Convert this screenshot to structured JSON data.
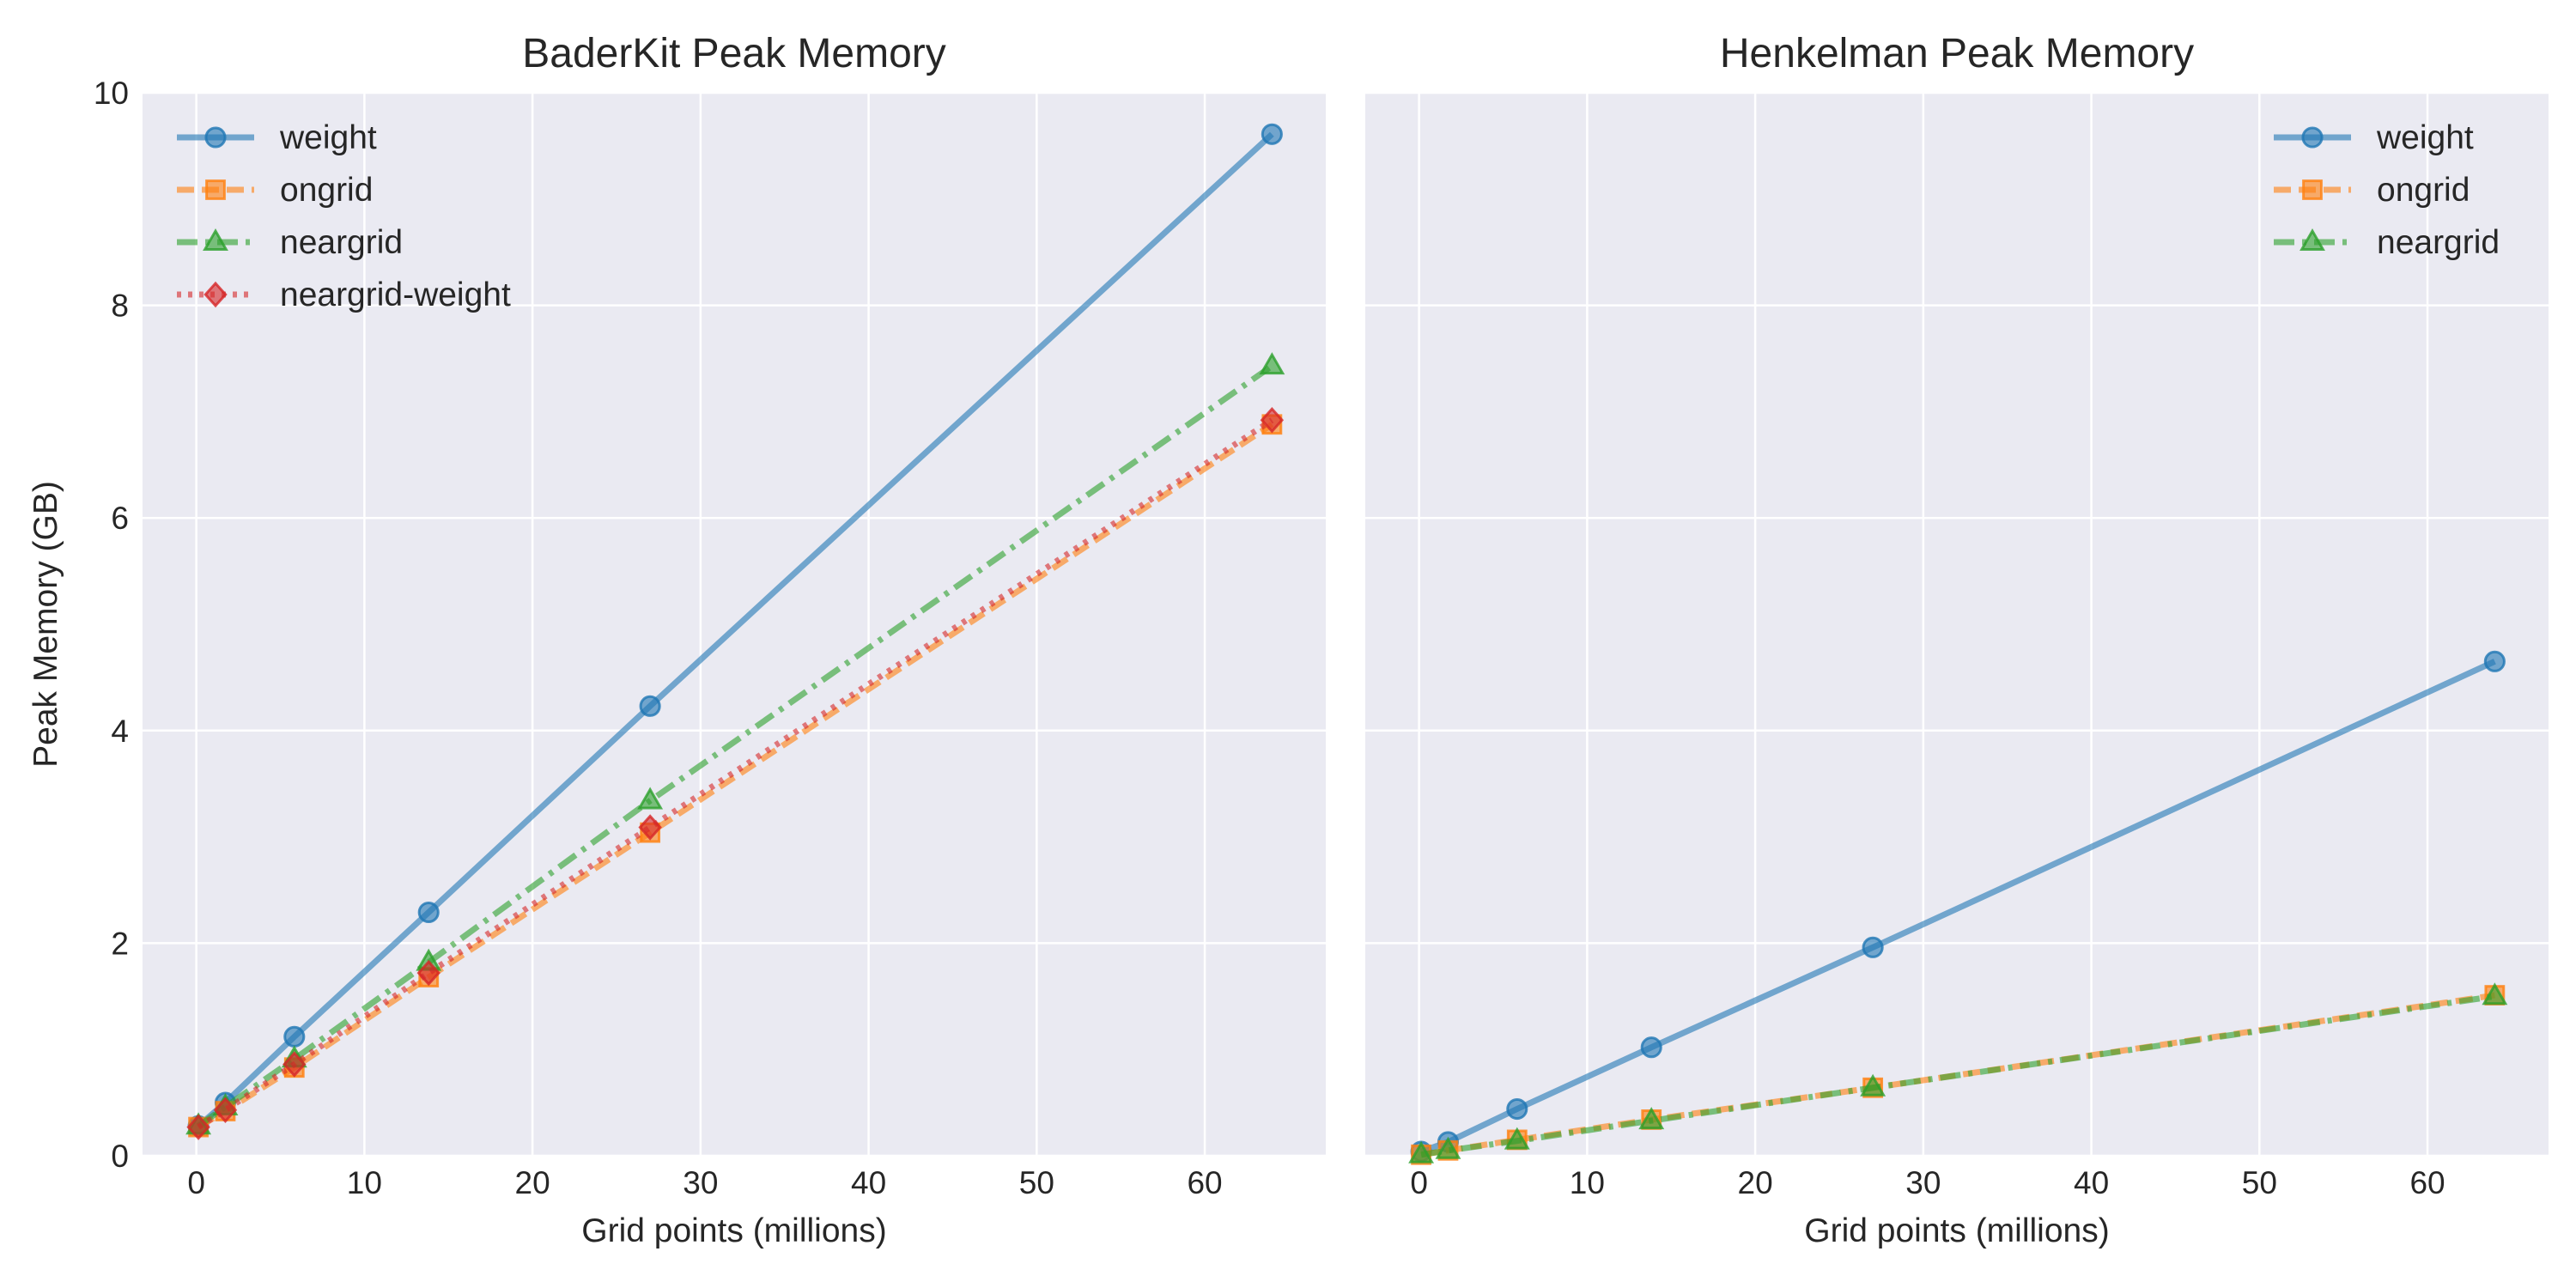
{
  "chart_data": [
    {
      "type": "line",
      "title": "BaderKit Peak Memory",
      "xlabel": "Grid points (millions)",
      "ylabel": "Peak Memory (GB)",
      "xlim": [
        -3.2,
        67.2
      ],
      "ylim": [
        0,
        10
      ],
      "xticks": [
        0,
        10,
        20,
        30,
        40,
        50,
        60
      ],
      "yticks": [
        0,
        2,
        4,
        6,
        8,
        10
      ],
      "grid": true,
      "legend": "upper-left",
      "x": [
        0.125,
        1.728,
        5.832,
        13.824,
        27.0,
        64.0
      ],
      "series": [
        {
          "name": "weight",
          "values": [
            0.28,
            0.5,
            1.12,
            2.29,
            4.23,
            9.61
          ],
          "color": "#1f77b4",
          "marker": "circle",
          "dash": "solid"
        },
        {
          "name": "ongrid",
          "values": [
            0.27,
            0.42,
            0.83,
            1.68,
            3.04,
            6.88
          ],
          "color": "#ff7f0e",
          "marker": "square",
          "dash": "dashed"
        },
        {
          "name": "neargrid",
          "values": [
            0.28,
            0.46,
            0.91,
            1.82,
            3.34,
            7.43
          ],
          "color": "#2ca02c",
          "marker": "triangle",
          "dash": "dashdot"
        },
        {
          "name": "neargrid-weight",
          "values": [
            0.27,
            0.43,
            0.86,
            1.72,
            3.09,
            6.92
          ],
          "color": "#d62728",
          "marker": "diamond",
          "dash": "dotted"
        }
      ]
    },
    {
      "type": "line",
      "title": "Henkelman Peak Memory",
      "xlabel": "Grid points (millions)",
      "ylabel": "",
      "xlim": [
        -3.2,
        67.2
      ],
      "ylim": [
        0,
        10
      ],
      "xticks": [
        0,
        10,
        20,
        30,
        40,
        50,
        60
      ],
      "yticks": [
        0,
        2,
        4,
        6,
        8,
        10
      ],
      "show_yticklabels": false,
      "grid": true,
      "legend": "upper-right",
      "x": [
        0.125,
        1.728,
        5.832,
        13.824,
        27.0,
        64.0
      ],
      "series": [
        {
          "name": "weight",
          "values": [
            0.04,
            0.13,
            0.44,
            1.02,
            1.96,
            4.65
          ],
          "color": "#1f77b4",
          "marker": "circle",
          "dash": "solid"
        },
        {
          "name": "ongrid",
          "values": [
            0.01,
            0.05,
            0.15,
            0.34,
            0.64,
            1.51
          ],
          "color": "#ff7f0e",
          "marker": "square",
          "dash": "dashed"
        },
        {
          "name": "neargrid",
          "values": [
            0.01,
            0.05,
            0.14,
            0.33,
            0.64,
            1.5
          ],
          "color": "#2ca02c",
          "marker": "triangle",
          "dash": "dashdot"
        }
      ]
    }
  ]
}
